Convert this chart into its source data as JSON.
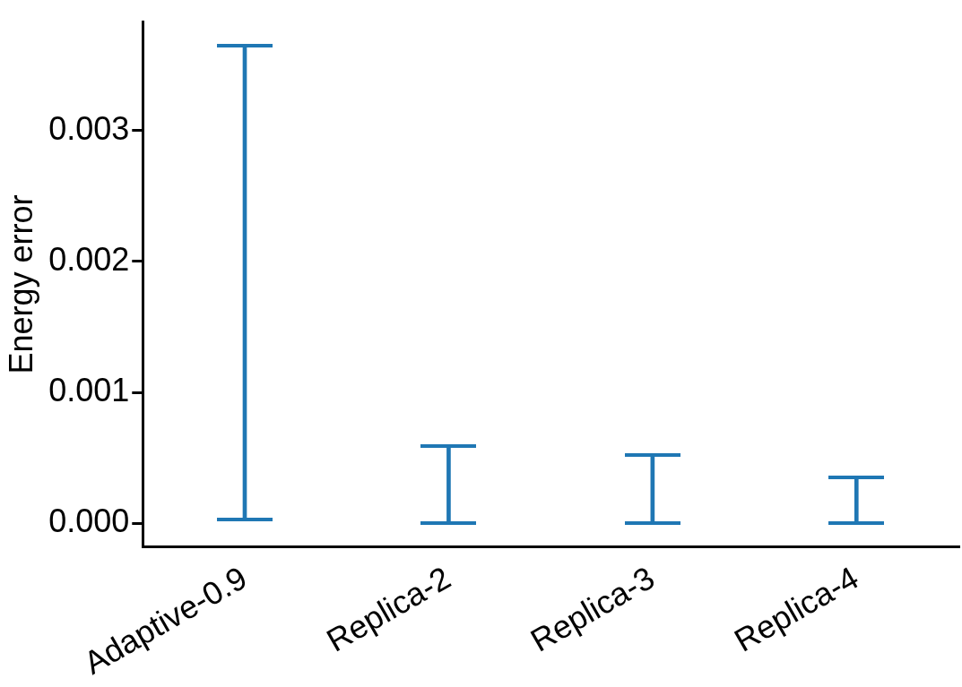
{
  "chart_data": {
    "type": "bar",
    "ylabel": "Energy error",
    "categories": [
      "Adaptive-0.9",
      "Replica-2",
      "Replica-3",
      "Replica-4"
    ],
    "base": [
      3e-05,
      0,
      0,
      0
    ],
    "values": [
      0.00362,
      0.00059,
      0.00052,
      0.00035
    ],
    "color": "#1f77b4",
    "ylim": [
      -0.00018,
      0.00383
    ],
    "yticks": [
      {
        "value": 0,
        "label": "0.000"
      },
      {
        "value": 0.001,
        "label": "0.001"
      },
      {
        "value": 0.002,
        "label": "0.002"
      },
      {
        "value": 0.003,
        "label": "0.003"
      }
    ],
    "grid": false
  }
}
